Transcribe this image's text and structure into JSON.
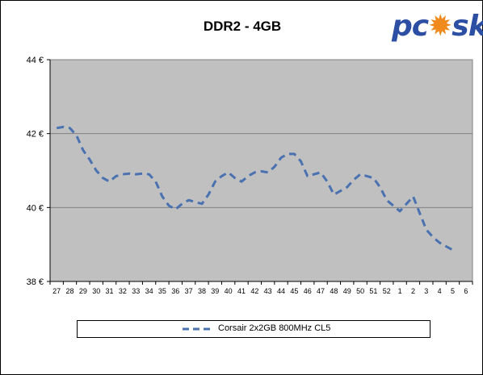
{
  "chart_data": {
    "type": "line",
    "title": "DDR2 - 4GB",
    "xlabel": "",
    "ylabel": "",
    "categories": [
      "27",
      "28",
      "29",
      "30",
      "31",
      "32",
      "33",
      "34",
      "35",
      "36",
      "37",
      "38",
      "39",
      "40",
      "41",
      "42",
      "43",
      "44",
      "45",
      "46",
      "47",
      "48",
      "49",
      "50",
      "51",
      "52",
      "1",
      "2",
      "3",
      "4",
      "5",
      "6"
    ],
    "x": [
      27,
      27.5,
      28,
      28.5,
      29,
      29.5,
      30,
      30.5,
      31,
      31.5,
      32,
      32.5,
      33,
      33.5,
      34,
      34.5,
      35,
      35.5,
      36,
      36.5,
      37,
      37.5,
      38,
      38.5,
      39,
      39.5,
      40,
      40.5,
      41,
      41.5,
      42,
      42.5,
      43,
      43.5,
      44,
      44.5,
      45,
      45.5,
      46,
      46.5,
      47,
      47.5,
      48,
      48.5,
      49,
      49.5,
      50,
      50.5,
      51,
      51.5,
      52,
      52.5,
      53,
      53.5,
      54,
      54.5,
      55,
      55.5,
      56,
      56.5,
      57
    ],
    "series": [
      {
        "name": "Corsair 2x2GB 800MHz CL5",
        "color": "#4a72b0",
        "values": [
          42.15,
          42.18,
          42.15,
          41.95,
          41.55,
          41.3,
          41.0,
          40.8,
          40.7,
          40.85,
          40.9,
          40.92,
          40.9,
          40.92,
          40.9,
          40.7,
          40.3,
          40.05,
          39.95,
          40.1,
          40.2,
          40.15,
          40.1,
          40.35,
          40.7,
          40.85,
          40.95,
          40.8,
          40.7,
          40.85,
          40.95,
          40.98,
          40.95,
          41.1,
          41.35,
          41.45,
          41.45,
          41.25,
          40.85,
          40.9,
          40.95,
          40.7,
          40.35,
          40.45,
          40.55,
          40.75,
          40.9,
          40.85,
          40.8,
          40.55,
          40.2,
          40.05,
          39.9,
          40.1,
          40.3,
          39.85,
          39.4,
          39.2,
          39.05,
          38.95,
          38.85
        ]
      }
    ],
    "ylim": [
      38,
      44
    ],
    "yticks": [
      "38 €",
      "40 €",
      "42 €",
      "44 €"
    ],
    "grid": true,
    "legend_position": "bottom",
    "plot_background": "#c0c0c0",
    "grid_color": "#808080"
  },
  "logo": {
    "l1": "pc",
    "flame": "✹",
    "l3": "sk"
  }
}
